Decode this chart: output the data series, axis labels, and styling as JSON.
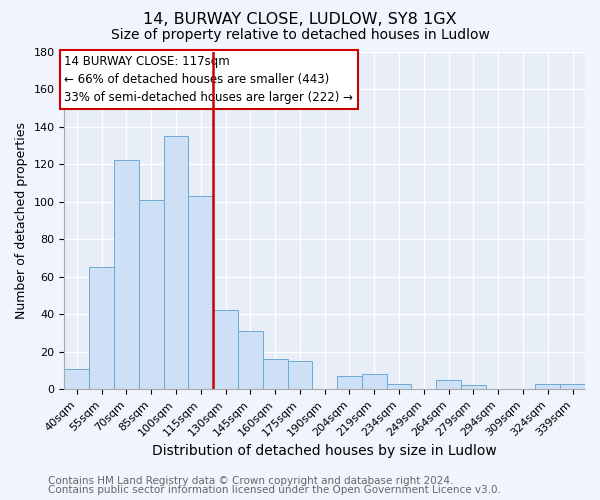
{
  "title": "14, BURWAY CLOSE, LUDLOW, SY8 1GX",
  "subtitle": "Size of property relative to detached houses in Ludlow",
  "xlabel": "Distribution of detached houses by size in Ludlow",
  "ylabel": "Number of detached properties",
  "bar_labels": [
    "40sqm",
    "55sqm",
    "70sqm",
    "85sqm",
    "100sqm",
    "115sqm",
    "130sqm",
    "145sqm",
    "160sqm",
    "175sqm",
    "190sqm",
    "204sqm",
    "219sqm",
    "234sqm",
    "249sqm",
    "264sqm",
    "279sqm",
    "294sqm",
    "309sqm",
    "324sqm",
    "339sqm"
  ],
  "bar_values": [
    11,
    65,
    122,
    101,
    135,
    103,
    42,
    31,
    16,
    15,
    0,
    7,
    8,
    3,
    0,
    5,
    2,
    0,
    0,
    3,
    3
  ],
  "bar_color": "#cde0f5",
  "bar_edge_color": "#6aaad4",
  "ylim": [
    0,
    180
  ],
  "yticks": [
    0,
    20,
    40,
    60,
    80,
    100,
    120,
    140,
    160,
    180
  ],
  "vline_x": 5.5,
  "vline_color": "#cc0000",
  "annotation_title": "14 BURWAY CLOSE: 117sqm",
  "annotation_line1": "← 66% of detached houses are smaller (443)",
  "annotation_line2": "33% of semi-detached houses are larger (222) →",
  "footer1": "Contains HM Land Registry data © Crown copyright and database right 2024.",
  "footer2": "Contains public sector information licensed under the Open Government Licence v3.0.",
  "background_color": "#f0f4fc",
  "plot_bg_color": "#e8eef8",
  "grid_color": "#ffffff",
  "title_fontsize": 11.5,
  "subtitle_fontsize": 10,
  "xlabel_fontsize": 10,
  "ylabel_fontsize": 9,
  "tick_fontsize": 8,
  "footer_fontsize": 7.5
}
